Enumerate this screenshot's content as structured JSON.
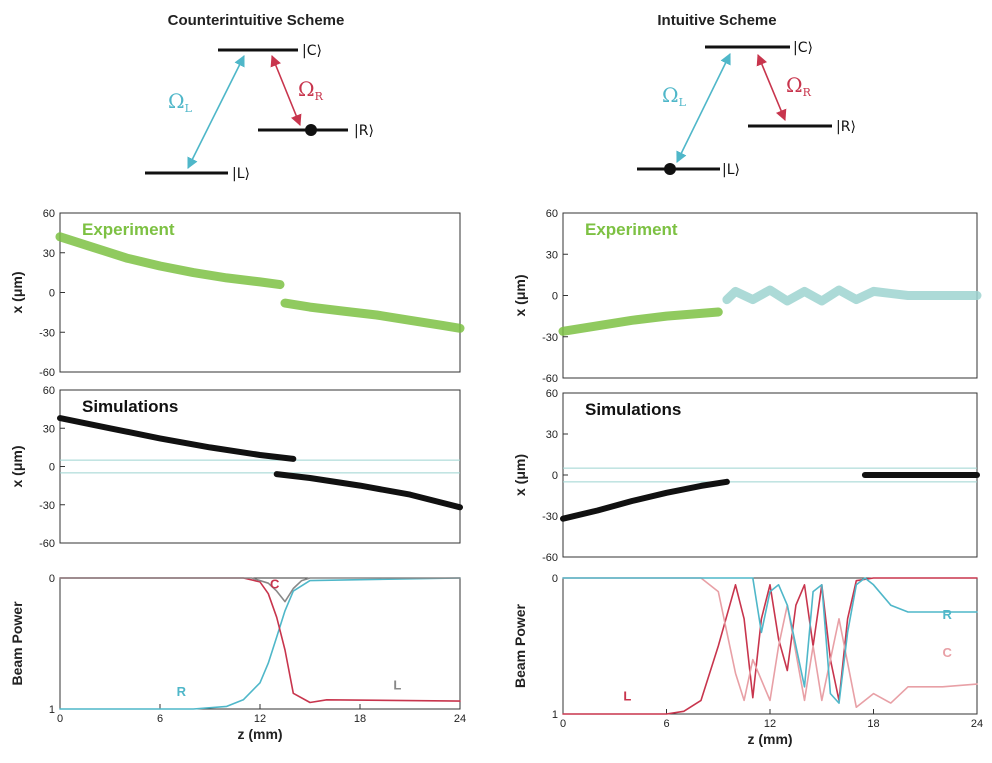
{
  "colors": {
    "cyan": "#4fb7c9",
    "red": "#c8354d",
    "green": "#7dc143",
    "black": "#111111"
  },
  "schemes": [
    {
      "title": "Counterintuitive Scheme",
      "level_c": "|C⟩",
      "level_r": "|R⟩",
      "level_l": "|L⟩",
      "omega_l": "Ω",
      "omega_l_sub": "L",
      "omega_r": "Ω",
      "omega_r_sub": "R",
      "populated": "R"
    },
    {
      "title": "Intuitive Scheme",
      "level_c": "|C⟩",
      "level_r": "|R⟩",
      "level_l": "|L⟩",
      "omega_l": "Ω",
      "omega_l_sub": "L",
      "omega_r": "Ω",
      "omega_r_sub": "R",
      "populated": "L"
    }
  ],
  "panels": {
    "experiment_label": "Experiment",
    "simulation_label": "Simulations",
    "x_axis_label": "x (μm)",
    "power_axis_label": "Beam Power",
    "z_axis_label": "z (mm)"
  },
  "chart_data": [
    {
      "type": "line",
      "title": "Experiment",
      "scheme": "Counterintuitive Scheme",
      "xlabel": "",
      "ylabel": "x (μm)",
      "xlim": [
        0,
        24
      ],
      "ylim": [
        60,
        -60
      ],
      "yticks": [
        "-60",
        "-30",
        "0",
        "30",
        "60"
      ],
      "series": [
        {
          "color": "#7dc143",
          "x": [
            0,
            2,
            4,
            6,
            8,
            10,
            12,
            13.2
          ],
          "y": [
            42,
            34,
            26,
            20,
            15,
            11,
            8,
            6
          ]
        },
        {
          "color": "#7dc143",
          "x": [
            13.5,
            15,
            17,
            19,
            21,
            23,
            24
          ],
          "y": [
            -8,
            -11,
            -14,
            -17,
            -21,
            -25,
            -27
          ]
        }
      ]
    },
    {
      "type": "line",
      "title": "Experiment",
      "scheme": "Intuitive Scheme",
      "xlabel": "",
      "ylabel": "x (μm)",
      "xlim": [
        0,
        24
      ],
      "ylim": [
        60,
        -60
      ],
      "yticks": [
        "-60",
        "-30",
        "0",
        "30",
        "60"
      ],
      "series": [
        {
          "color": "#7dc143",
          "x": [
            0,
            2,
            4,
            6,
            8,
            9
          ],
          "y": [
            -26,
            -22,
            -18,
            -15,
            -13,
            -12
          ]
        },
        {
          "color": "#9ed4d0",
          "x": [
            9.5,
            10,
            11,
            12,
            13,
            14,
            15,
            16,
            17,
            18,
            20,
            22,
            24
          ],
          "y": [
            -3,
            3,
            -3,
            4,
            -4,
            3,
            -4,
            4,
            -3,
            3,
            0,
            0,
            0
          ]
        }
      ]
    },
    {
      "type": "line",
      "title": "Simulations",
      "scheme": "Counterintuitive Scheme",
      "xlabel": "",
      "ylabel": "x (μm)",
      "xlim": [
        0,
        24
      ],
      "ylim": [
        60,
        -60
      ],
      "yticks": [
        "-60",
        "-30",
        "0",
        "30",
        "60"
      ],
      "series": [
        {
          "color": "#111111",
          "x": [
            0,
            3,
            6,
            9,
            12,
            14
          ],
          "y": [
            38,
            30,
            22,
            15,
            9,
            6
          ]
        },
        {
          "color": "#111111",
          "x": [
            13,
            15,
            18,
            21,
            24
          ],
          "y": [
            -6,
            -9,
            -15,
            -22,
            -32
          ]
        }
      ]
    },
    {
      "type": "line",
      "title": "Simulations",
      "scheme": "Intuitive Scheme",
      "xlabel": "",
      "ylabel": "x (μm)",
      "xlim": [
        0,
        24
      ],
      "ylim": [
        60,
        -60
      ],
      "yticks": [
        "-60",
        "-30",
        "0",
        "30",
        "60"
      ],
      "series": [
        {
          "color": "#111111",
          "x": [
            0,
            2,
            4,
            6,
            8,
            9.5
          ],
          "y": [
            -32,
            -26,
            -19,
            -13,
            -8,
            -5
          ]
        },
        {
          "color": "#111111",
          "x": [
            17.5,
            19,
            21,
            24
          ],
          "y": [
            0,
            0,
            0,
            0
          ]
        }
      ]
    },
    {
      "type": "line",
      "title": "",
      "scheme": "Counterintuitive Scheme",
      "xlabel": "z (mm)",
      "ylabel": "Beam Power",
      "xlim": [
        0,
        24
      ],
      "ylim": [
        0,
        1
      ],
      "xticks": [
        "0",
        "6",
        "12",
        "18",
        "24"
      ],
      "yticks": [
        "0",
        "1"
      ],
      "series": [
        {
          "name": "R",
          "color": "#4fb7c9",
          "x": [
            0,
            8,
            10,
            11,
            12,
            12.5,
            13,
            13.5,
            14,
            15,
            24
          ],
          "y": [
            1,
            1,
            0.98,
            0.93,
            0.8,
            0.65,
            0.45,
            0.25,
            0.1,
            0.02,
            0
          ]
        },
        {
          "name": "C",
          "color": "#c8354d",
          "x": [
            0,
            11,
            12,
            12.5,
            13,
            13.5,
            14,
            15,
            16,
            24
          ],
          "y": [
            0,
            0,
            0.03,
            0.12,
            0.3,
            0.55,
            0.88,
            0.95,
            0.93,
            0.94
          ]
        },
        {
          "name": "L",
          "color": "#888888",
          "x": [
            0,
            11.5,
            12.5,
            13,
            13.5,
            14,
            14.5,
            15,
            24
          ],
          "y": [
            0,
            0,
            0.04,
            0.1,
            0.18,
            0.08,
            0.02,
            0,
            0
          ]
        }
      ]
    },
    {
      "type": "line",
      "title": "",
      "scheme": "Intuitive Scheme",
      "xlabel": "z (mm)",
      "ylabel": "Beam Power",
      "xlim": [
        0,
        24
      ],
      "ylim": [
        0,
        1
      ],
      "xticks": [
        "0",
        "6",
        "12",
        "18",
        "24"
      ],
      "yticks": [
        "0",
        "1"
      ],
      "series": [
        {
          "name": "L",
          "color": "#c8354d",
          "x": [
            0,
            6,
            7,
            8,
            9,
            10,
            10.5,
            11,
            11.5,
            12,
            12.5,
            13,
            13.5,
            14,
            14.5,
            15,
            15.5,
            16,
            16.5,
            17,
            18,
            24
          ],
          "y": [
            1,
            1,
            0.98,
            0.9,
            0.5,
            0.05,
            0.3,
            0.88,
            0.3,
            0.05,
            0.45,
            0.68,
            0.2,
            0.05,
            0.5,
            0.05,
            0.6,
            0.9,
            0.3,
            0.02,
            0,
            0
          ]
        },
        {
          "name": "C",
          "color": "#e8a0a6",
          "x": [
            0,
            8,
            9,
            10,
            10.5,
            11,
            12,
            12.5,
            13,
            14,
            14.5,
            15,
            16,
            17,
            18,
            19,
            20,
            22,
            24
          ],
          "y": [
            0,
            0,
            0.1,
            0.7,
            0.9,
            0.6,
            0.9,
            0.5,
            0.2,
            0.9,
            0.5,
            0.9,
            0.3,
            0.95,
            0.85,
            0.92,
            0.8,
            0.8,
            0.78
          ]
        },
        {
          "name": "R",
          "color": "#4fb7c9",
          "x": [
            0,
            11,
            11.5,
            12,
            12.5,
            13,
            14,
            14.5,
            15,
            15.5,
            16,
            16.5,
            17,
            17.5,
            18,
            19,
            20,
            22,
            24
          ],
          "y": [
            0,
            0,
            0.4,
            0.1,
            0.05,
            0.2,
            0.8,
            0.1,
            0.05,
            0.85,
            0.92,
            0.4,
            0.05,
            0.0,
            0.05,
            0.2,
            0.25,
            0.25,
            0.25
          ]
        }
      ]
    }
  ]
}
